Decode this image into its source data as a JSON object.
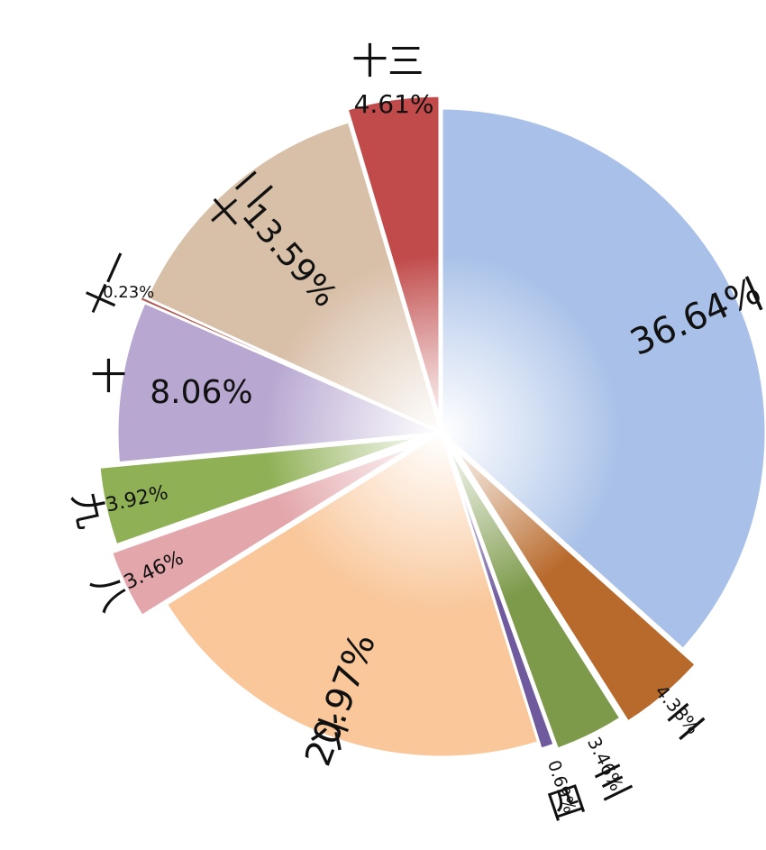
{
  "chart_data": {
    "type": "pie",
    "title": "",
    "slices": [
      {
        "label": "一",
        "value": 36.64,
        "value_label": "36.64%",
        "color": "#a9c1e8"
      },
      {
        "label": "二",
        "value": 4.38,
        "value_label": "4.38%",
        "color": "#b86a2c"
      },
      {
        "label": "三",
        "value": 3.46,
        "value_label": "3.46%",
        "color": "#7d9a4a"
      },
      {
        "label": "四",
        "value": 0.69,
        "value_label": "0.69%",
        "color": "#6f5a9e"
      },
      {
        "label": "六",
        "value": 20.97,
        "value_label": "20.97%",
        "color": "#f9c79a"
      },
      {
        "label": "八",
        "value": 3.46,
        "value_label": "3.46%",
        "color": "#e3a6ab"
      },
      {
        "label": "九",
        "value": 3.92,
        "value_label": "3.92%",
        "color": "#8fb055"
      },
      {
        "label": "十",
        "value": 8.06,
        "value_label": "8.06%",
        "color": "#b7a7d1"
      },
      {
        "label": "十一",
        "value": 0.23,
        "value_label": "0.23%",
        "color": "#b0574f"
      },
      {
        "label": "十二",
        "value": 13.59,
        "value_label": "13.59%",
        "color": "#d8bfa8"
      },
      {
        "label": "十三",
        "value": 4.61,
        "value_label": "4.61%",
        "color": "#c14b4b"
      }
    ]
  }
}
